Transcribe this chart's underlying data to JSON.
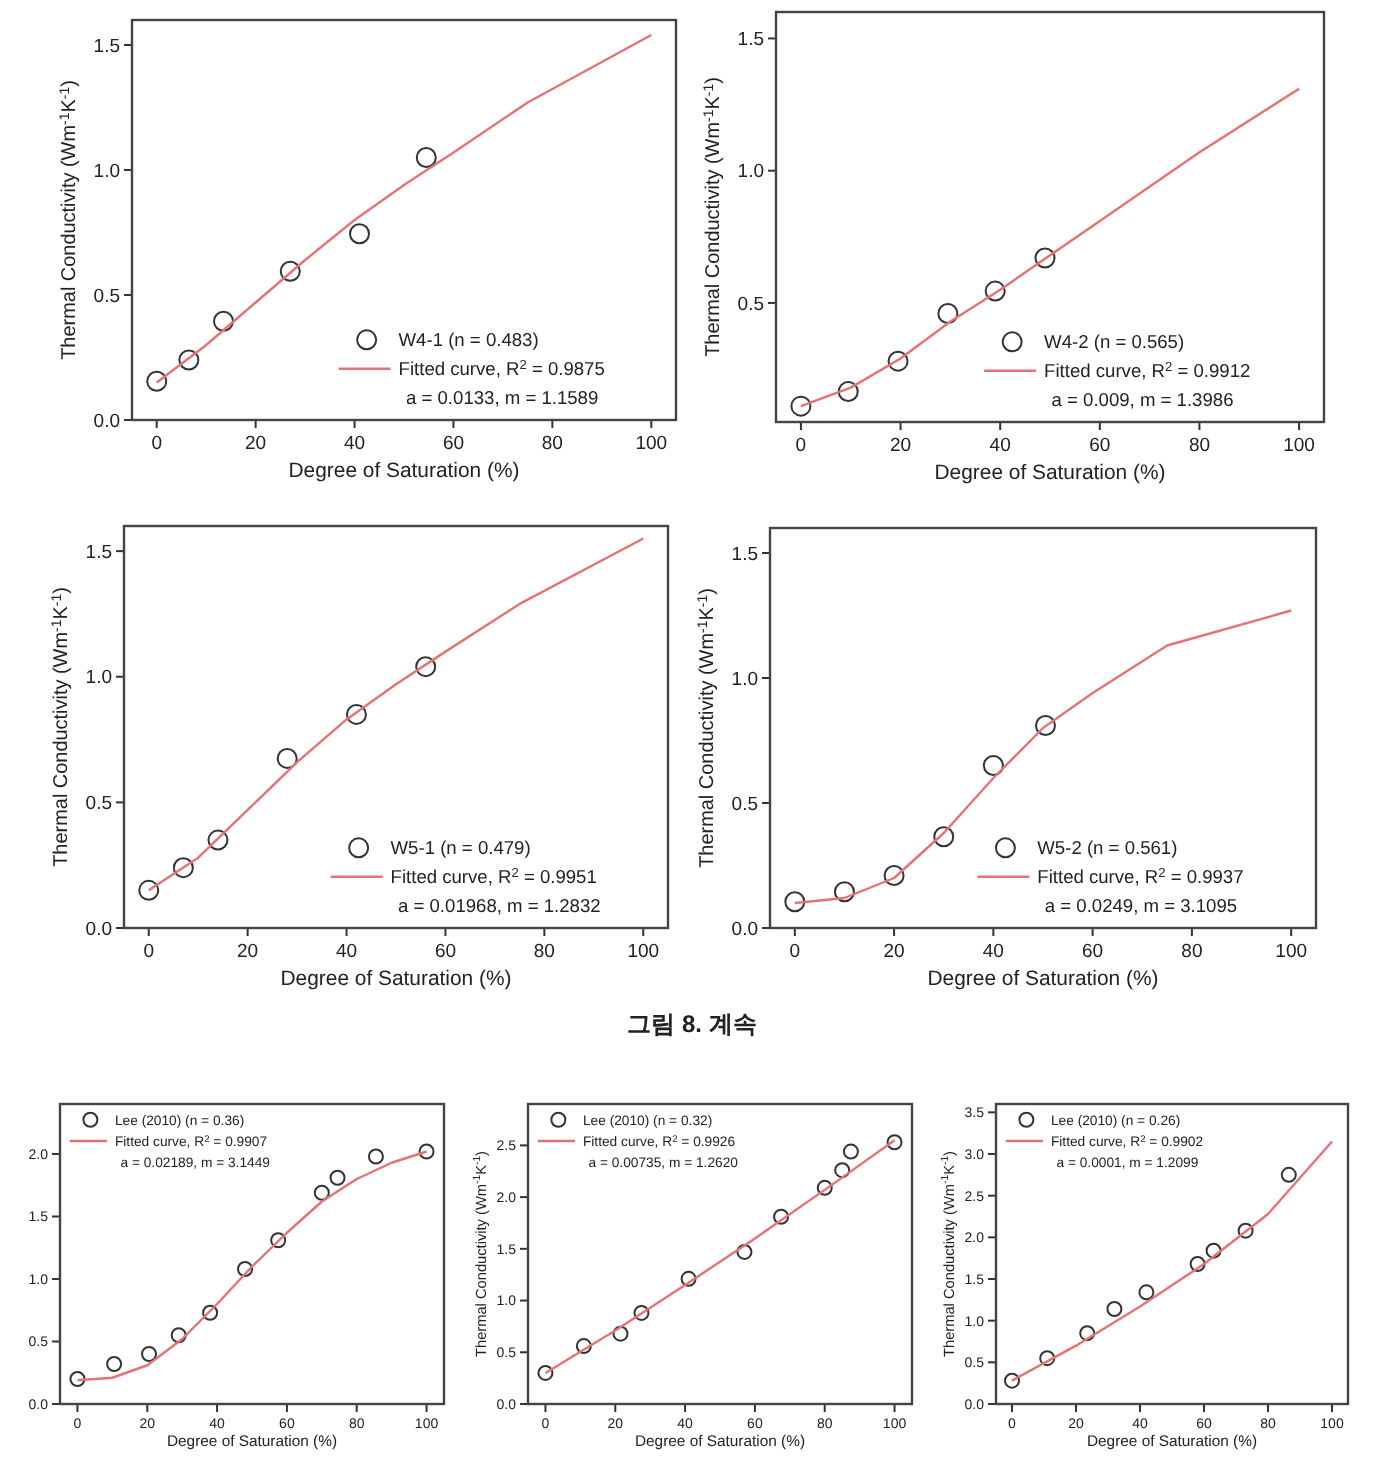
{
  "chart_data": [
    {
      "type": "scatter",
      "xlabel": "Degree of Saturation (%)",
      "ylabel": "Thermal Conductivity (Wm$^{-1}$K$^{-1}$)",
      "xlim": [
        -5,
        105
      ],
      "ylim": [
        0,
        1.6
      ],
      "xticks": [
        0,
        20,
        40,
        60,
        80,
        100
      ],
      "yticks": [
        {
          "value": 0,
          "label": "0.0"
        },
        0.5,
        {
          "value": 1,
          "label": "1.0"
        },
        1.5
      ],
      "legend": "bottom right",
      "annotations": [
        "a = 0.0133, m = 1.1589"
      ],
      "series": [
        {
          "name": "W4-1 (n = 0.483)",
          "type": "scatter",
          "marker": "circle",
          "color": "#333333",
          "x": [
            0,
            6.5,
            13.5,
            27,
            41,
            54.5
          ],
          "values": [
            0.155,
            0.24,
            0.395,
            0.595,
            0.745,
            1.05
          ]
        },
        {
          "name": "Fitted curve, R$^{2}$ = 0.9875",
          "type": "line",
          "marker": "none",
          "color": "#e57373",
          "x": [
            0,
            10,
            20,
            30,
            40,
            50,
            60,
            75,
            100
          ],
          "values": [
            0.15,
            0.3,
            0.47,
            0.64,
            0.8,
            0.94,
            1.07,
            1.27,
            1.54
          ]
        }
      ]
    },
    {
      "type": "scatter",
      "xlabel": "Degree of Saturation (%)",
      "ylabel": "Thermal Conductivity (Wm$^{-1}$K$^{-1}$)",
      "xlim": [
        -5,
        105
      ],
      "ylim": [
        0.05,
        1.6
      ],
      "xticks": [
        0,
        20,
        40,
        60,
        80,
        100
      ],
      "yticks": [
        0.5,
        {
          "value": 1,
          "label": "1.0"
        },
        1.5
      ],
      "legend": "bottom right",
      "annotations": [
        "a = 0.009, m = 1.3986"
      ],
      "series": [
        {
          "name": "W4-2 (n = 0.565)",
          "type": "scatter",
          "marker": "circle",
          "color": "#333333",
          "x": [
            0,
            9.5,
            19.5,
            29.5,
            39,
            49
          ],
          "values": [
            0.11,
            0.165,
            0.28,
            0.46,
            0.545,
            0.67
          ]
        },
        {
          "name": "Fitted curve, R$^{2}$ = 0.9912",
          "type": "line",
          "marker": "none",
          "color": "#e57373",
          "x": [
            0,
            10,
            20,
            30,
            40,
            50,
            60,
            80,
            100
          ],
          "values": [
            0.11,
            0.18,
            0.29,
            0.43,
            0.55,
            0.68,
            0.81,
            1.07,
            1.31
          ]
        }
      ]
    },
    {
      "type": "scatter",
      "xlabel": "Degree of Saturation (%)",
      "ylabel": "Thermal Conductivity (Wm$^{-1}$K$^{-1}$)",
      "xlim": [
        -5,
        105
      ],
      "ylim": [
        0,
        1.6
      ],
      "xticks": [
        0,
        20,
        40,
        60,
        80,
        100
      ],
      "yticks": [
        {
          "value": 0,
          "label": "0.0"
        },
        0.5,
        {
          "value": 1,
          "label": "1.0"
        },
        1.5
      ],
      "legend": "bottom right",
      "annotations": [
        "a = 0.01968, m = 1.2832"
      ],
      "series": [
        {
          "name": "W5-1 (n = 0.479)",
          "type": "scatter",
          "marker": "circle",
          "color": "#333333",
          "x": [
            0,
            7,
            14,
            28,
            42,
            56
          ],
          "values": [
            0.15,
            0.24,
            0.35,
            0.675,
            0.85,
            1.04
          ]
        },
        {
          "name": "Fitted curve, R$^{2}$ = 0.9951",
          "type": "line",
          "marker": "none",
          "color": "#e57373",
          "x": [
            0,
            10,
            20,
            30,
            40,
            50,
            60,
            75,
            100
          ],
          "values": [
            0.15,
            0.28,
            0.47,
            0.66,
            0.83,
            0.97,
            1.1,
            1.29,
            1.55
          ]
        }
      ]
    },
    {
      "type": "scatter",
      "xlabel": "Degree of Saturation (%)",
      "ylabel": "Thermal Conductivity (Wm$^{-1}$K$^{-1}$)",
      "xlim": [
        -5,
        105
      ],
      "ylim": [
        0,
        1.6
      ],
      "xticks": [
        0,
        20,
        40,
        60,
        80,
        100
      ],
      "yticks": [
        {
          "value": 0,
          "label": "0.0"
        },
        0.5,
        {
          "value": 1,
          "label": "1.0"
        },
        1.5
      ],
      "legend": "bottom right",
      "annotations": [
        "a = 0.0249, m = 3.1095"
      ],
      "series": [
        {
          "name": "W5-2 (n = 0.561)",
          "type": "scatter",
          "marker": "circle",
          "color": "#333333",
          "x": [
            0,
            10,
            20,
            30,
            40,
            50.5
          ],
          "values": [
            0.105,
            0.145,
            0.21,
            0.365,
            0.65,
            0.81
          ]
        },
        {
          "name": "Fitted curve, R$^{2}$ = 0.9937",
          "type": "line",
          "marker": "none",
          "color": "#e57373",
          "x": [
            0,
            10,
            20,
            30,
            40,
            50,
            60,
            75,
            100
          ],
          "values": [
            0.1,
            0.12,
            0.2,
            0.38,
            0.6,
            0.8,
            0.94,
            1.13,
            1.27
          ]
        }
      ]
    },
    {
      "type": "other",
      "title": "그림 8. 계속"
    },
    {
      "type": "scatter",
      "xlabel": "Degree of Saturation (%)",
      "xlim": [
        -5,
        105
      ],
      "ylim": [
        0,
        2.4
      ],
      "xticks": [
        0,
        20,
        40,
        60,
        80,
        100
      ],
      "yticks": [
        {
          "value": 0,
          "label": "0.0"
        },
        0.5,
        {
          "value": 1,
          "label": "1.0"
        },
        1.5,
        {
          "value": 2,
          "label": "2.0"
        }
      ],
      "legend": "top left",
      "annotations": [
        "a = 0.02189, m = 3.1449"
      ],
      "series": [
        {
          "name": "Lee (2010) (n = 0.36)",
          "type": "scatter",
          "marker": "circle",
          "color": "#333333",
          "x": [
            0,
            10.5,
            20.5,
            29,
            38,
            48,
            57.5,
            70,
            74.5,
            85.5,
            100
          ],
          "values": [
            0.2,
            0.32,
            0.4,
            0.55,
            0.73,
            1.08,
            1.31,
            1.69,
            1.81,
            1.98,
            2.02
          ]
        },
        {
          "name": "Fitted curve, R$^{2}$ = 0.9907",
          "type": "line",
          "marker": "none",
          "color": "#e57373",
          "x": [
            0,
            10,
            20,
            30,
            40,
            50,
            60,
            70,
            80,
            90,
            100
          ],
          "values": [
            0.19,
            0.21,
            0.31,
            0.52,
            0.8,
            1.1,
            1.37,
            1.62,
            1.8,
            1.93,
            2.02
          ]
        }
      ]
    },
    {
      "type": "scatter",
      "xlabel": "Degree of Saturation (%)",
      "ylabel": "Thermal Conductivity (Wm$^{-1}$K$^{-1}$)",
      "xlim": [
        -5,
        105
      ],
      "ylim": [
        0,
        2.9
      ],
      "xticks": [
        0,
        20,
        40,
        60,
        80,
        100
      ],
      "yticks": [
        {
          "value": 0,
          "label": "0.0"
        },
        0.5,
        {
          "value": 1,
          "label": "1.0"
        },
        1.5,
        {
          "value": 2,
          "label": "2.0"
        },
        2.5
      ],
      "legend": "top left",
      "annotations": [
        "a = 0.00735, m = 1.2620"
      ],
      "series": [
        {
          "name": "Lee (2010) (n = 0.32)",
          "type": "scatter",
          "marker": "circle",
          "color": "#333333",
          "x": [
            0,
            11,
            21.5,
            27.5,
            41,
            57,
            67.5,
            80,
            85,
            87.5,
            100
          ],
          "values": [
            0.3,
            0.56,
            0.68,
            0.88,
            1.21,
            1.47,
            1.81,
            2.09,
            2.26,
            2.44,
            2.53
          ]
        },
        {
          "name": "Fitted curve, R$^{2}$ = 0.9926",
          "type": "line",
          "marker": "none",
          "color": "#e57373",
          "x": [
            0,
            20,
            40,
            60,
            80,
            100
          ],
          "values": [
            0.3,
            0.71,
            1.15,
            1.6,
            2.07,
            2.55
          ]
        }
      ]
    },
    {
      "type": "scatter",
      "xlabel": "Degree of Saturation (%)",
      "ylabel": "Thermal Conductivity (Wm$^{-1}$K$^{-1}$)",
      "xlim": [
        -5,
        105
      ],
      "ylim": [
        0,
        3.6
      ],
      "xticks": [
        0,
        20,
        40,
        60,
        80,
        100
      ],
      "yticks": [
        {
          "value": 0,
          "label": "0.0"
        },
        0.5,
        {
          "value": 1,
          "label": "1.0"
        },
        1.5,
        {
          "value": 2,
          "label": "2.0"
        },
        2.5,
        {
          "value": 3,
          "label": "3.0"
        },
        3.5
      ],
      "legend": "top left",
      "annotations": [
        "a = 0.0001, m = 1.2099"
      ],
      "series": [
        {
          "name": "Lee (2010) (n = 0.26)",
          "type": "scatter",
          "marker": "circle",
          "color": "#333333",
          "x": [
            0,
            11,
            23.5,
            32,
            42,
            58,
            63,
            73,
            86.5
          ],
          "values": [
            0.28,
            0.55,
            0.85,
            1.14,
            1.34,
            1.68,
            1.84,
            2.08,
            2.75
          ]
        },
        {
          "name": "Fitted curve, R$^{2}$ = 0.9902",
          "type": "line",
          "marker": "none",
          "color": "#e57373",
          "x": [
            0,
            20,
            40,
            60,
            80,
            100
          ],
          "values": [
            0.28,
            0.7,
            1.17,
            1.68,
            2.28,
            3.15
          ]
        }
      ]
    }
  ]
}
